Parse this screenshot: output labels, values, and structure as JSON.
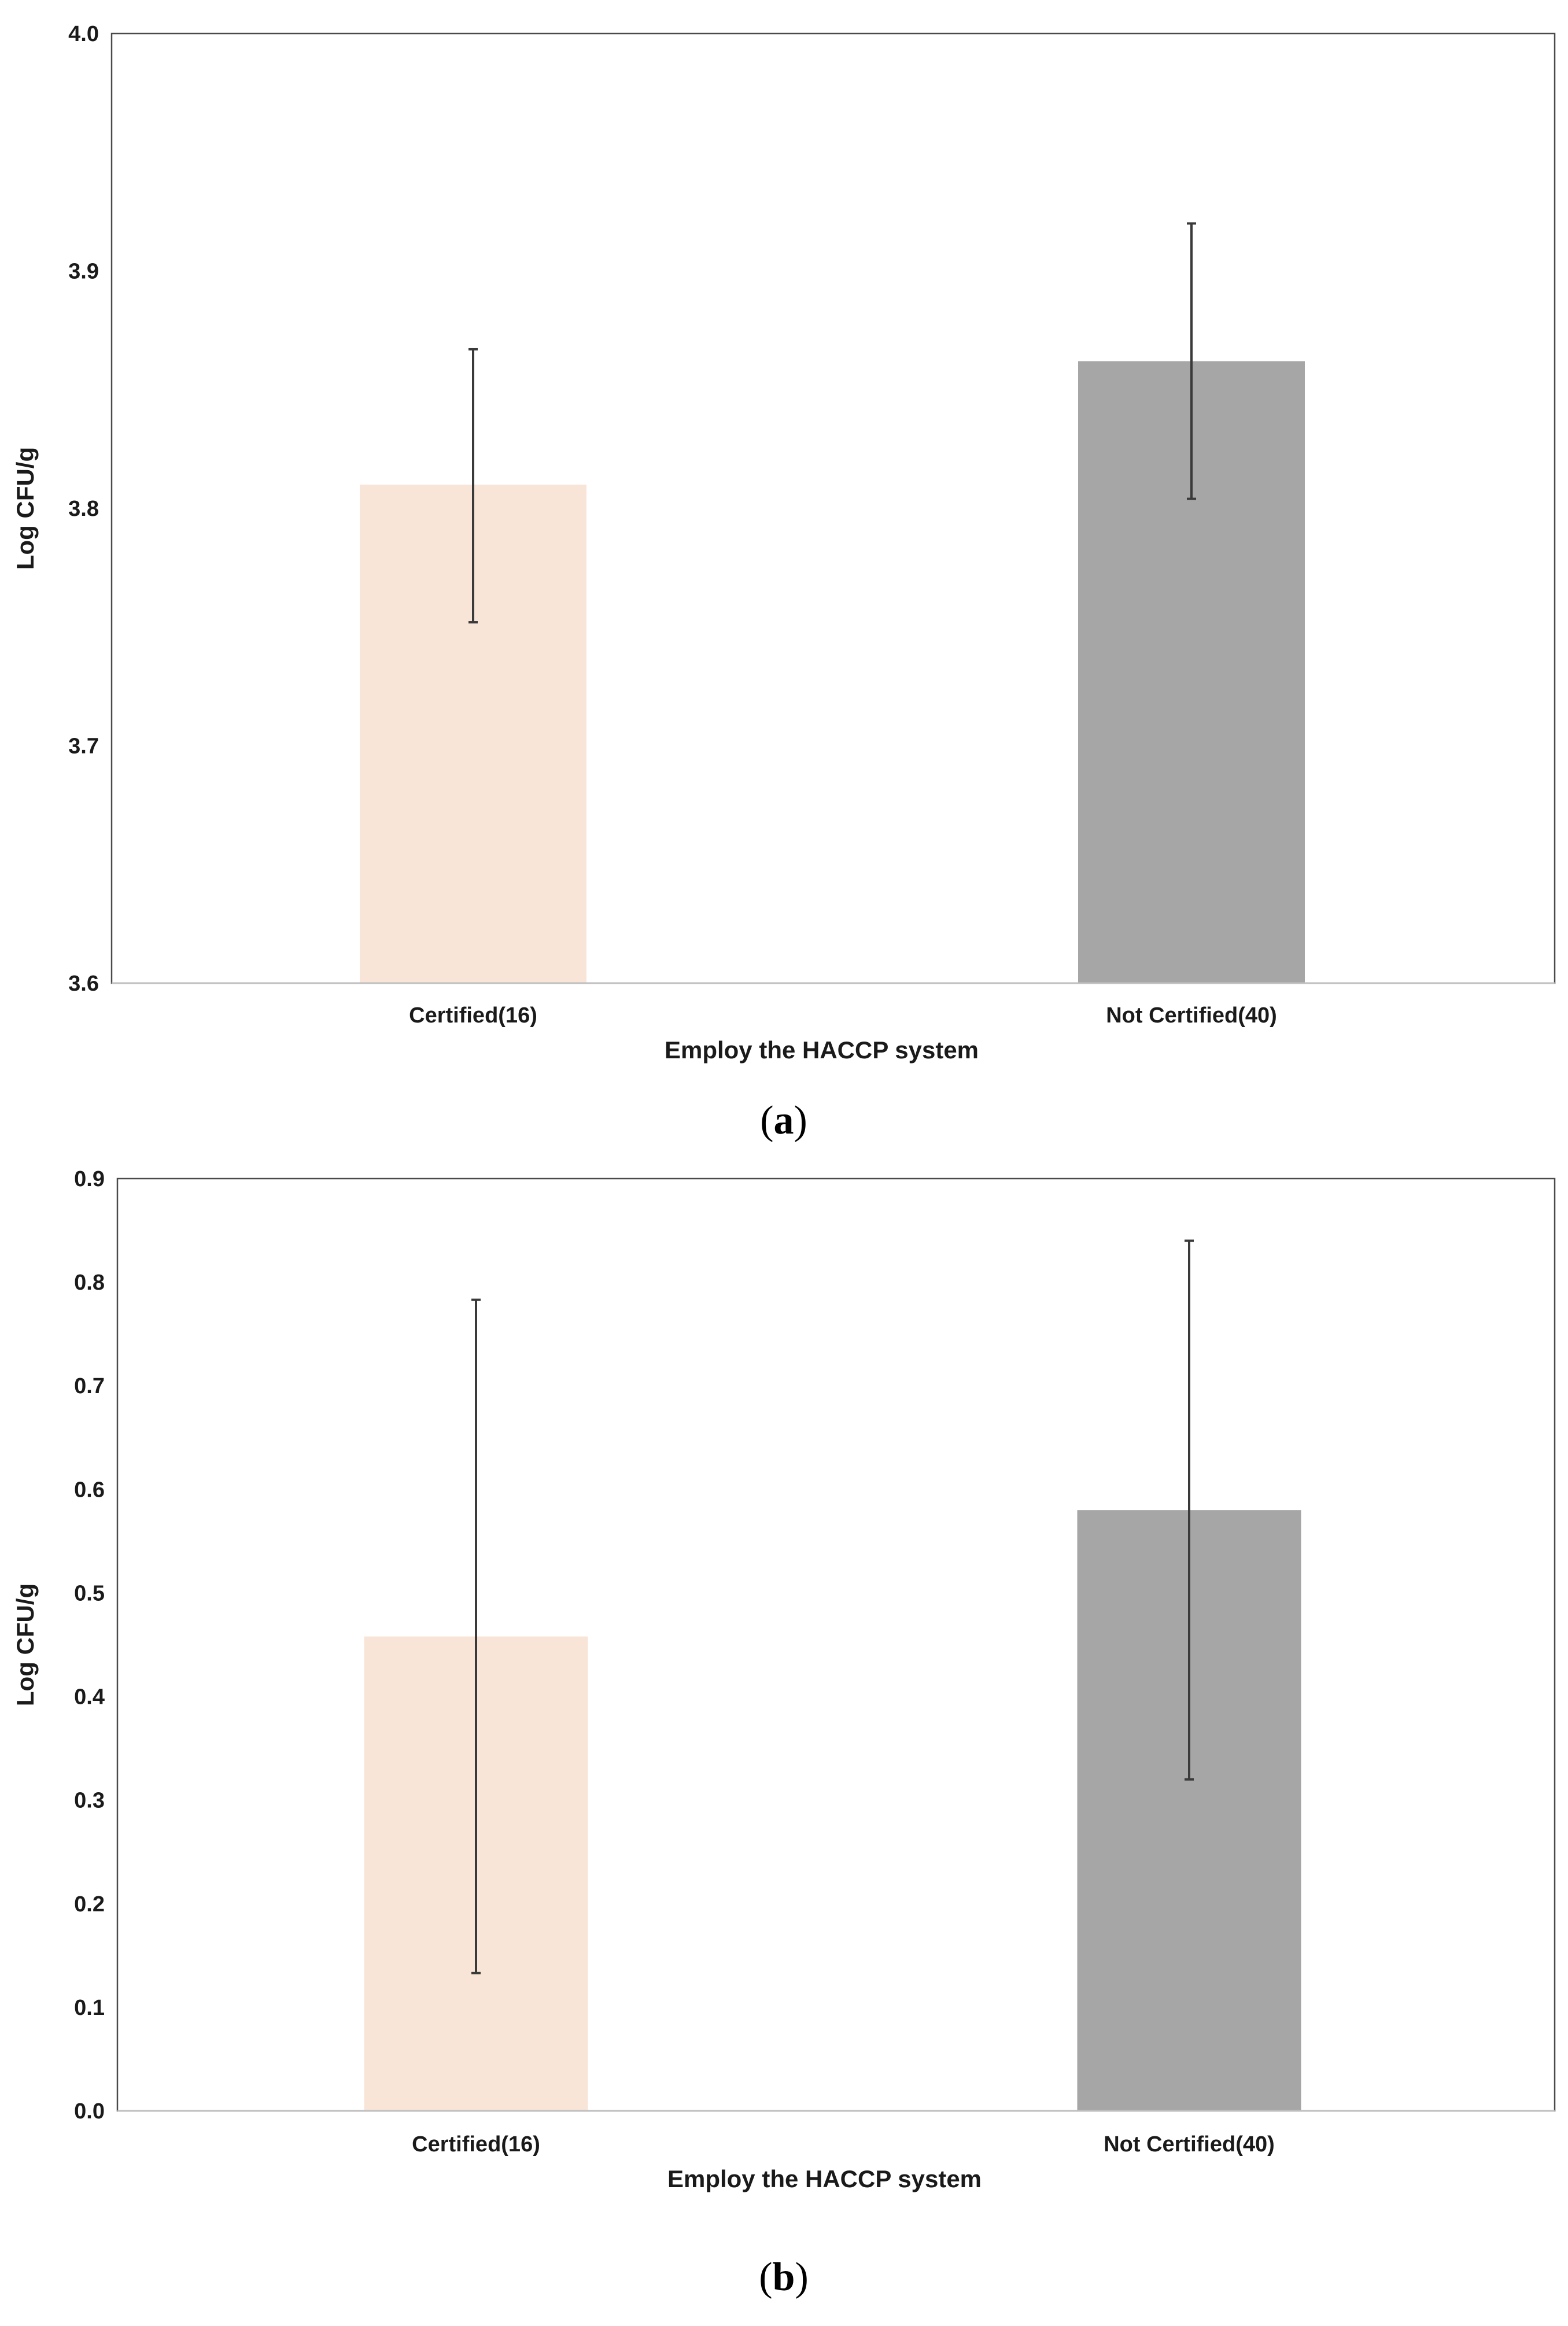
{
  "chart_data": [
    {
      "type": "bar",
      "panel": "a",
      "caption_open": "(",
      "caption_letter": "a",
      "caption_close": ")",
      "xlabel": "Employ the HACCP system",
      "ylabel": "Log CFU/g",
      "categories": [
        "Certified(16)",
        "Not Certified(40)"
      ],
      "values": [
        3.81,
        3.862
      ],
      "error_low": [
        3.752,
        3.804
      ],
      "error_high": [
        3.867,
        3.92
      ],
      "colors": [
        "#f8e5d8",
        "#a6a6a6"
      ],
      "ylim": [
        3.6,
        4.0
      ],
      "yticks": [
        "3.6",
        "3.7",
        "3.8",
        "3.9",
        "4.0"
      ],
      "ytick_values": [
        3.6,
        3.7,
        3.8,
        3.9,
        4.0
      ]
    },
    {
      "type": "bar",
      "panel": "b",
      "caption_open": "(",
      "caption_letter": "b",
      "caption_close": ")",
      "xlabel": "Employ the HACCP system",
      "ylabel": "Log CFU/g",
      "categories": [
        "Certified(16)",
        "Not Certified(40)"
      ],
      "values": [
        0.458,
        0.58
      ],
      "error_low": [
        0.133,
        0.32
      ],
      "error_high": [
        0.783,
        0.84
      ],
      "colors": [
        "#f8e5d8",
        "#a6a6a6"
      ],
      "ylim": [
        0.0,
        0.9
      ],
      "yticks": [
        "0.0",
        "0.1",
        "0.2",
        "0.3",
        "0.4",
        "0.5",
        "0.6",
        "0.7",
        "0.8",
        "0.9"
      ],
      "ytick_values": [
        0.0,
        0.1,
        0.2,
        0.3,
        0.4,
        0.5,
        0.6,
        0.7,
        0.8,
        0.9
      ]
    }
  ]
}
